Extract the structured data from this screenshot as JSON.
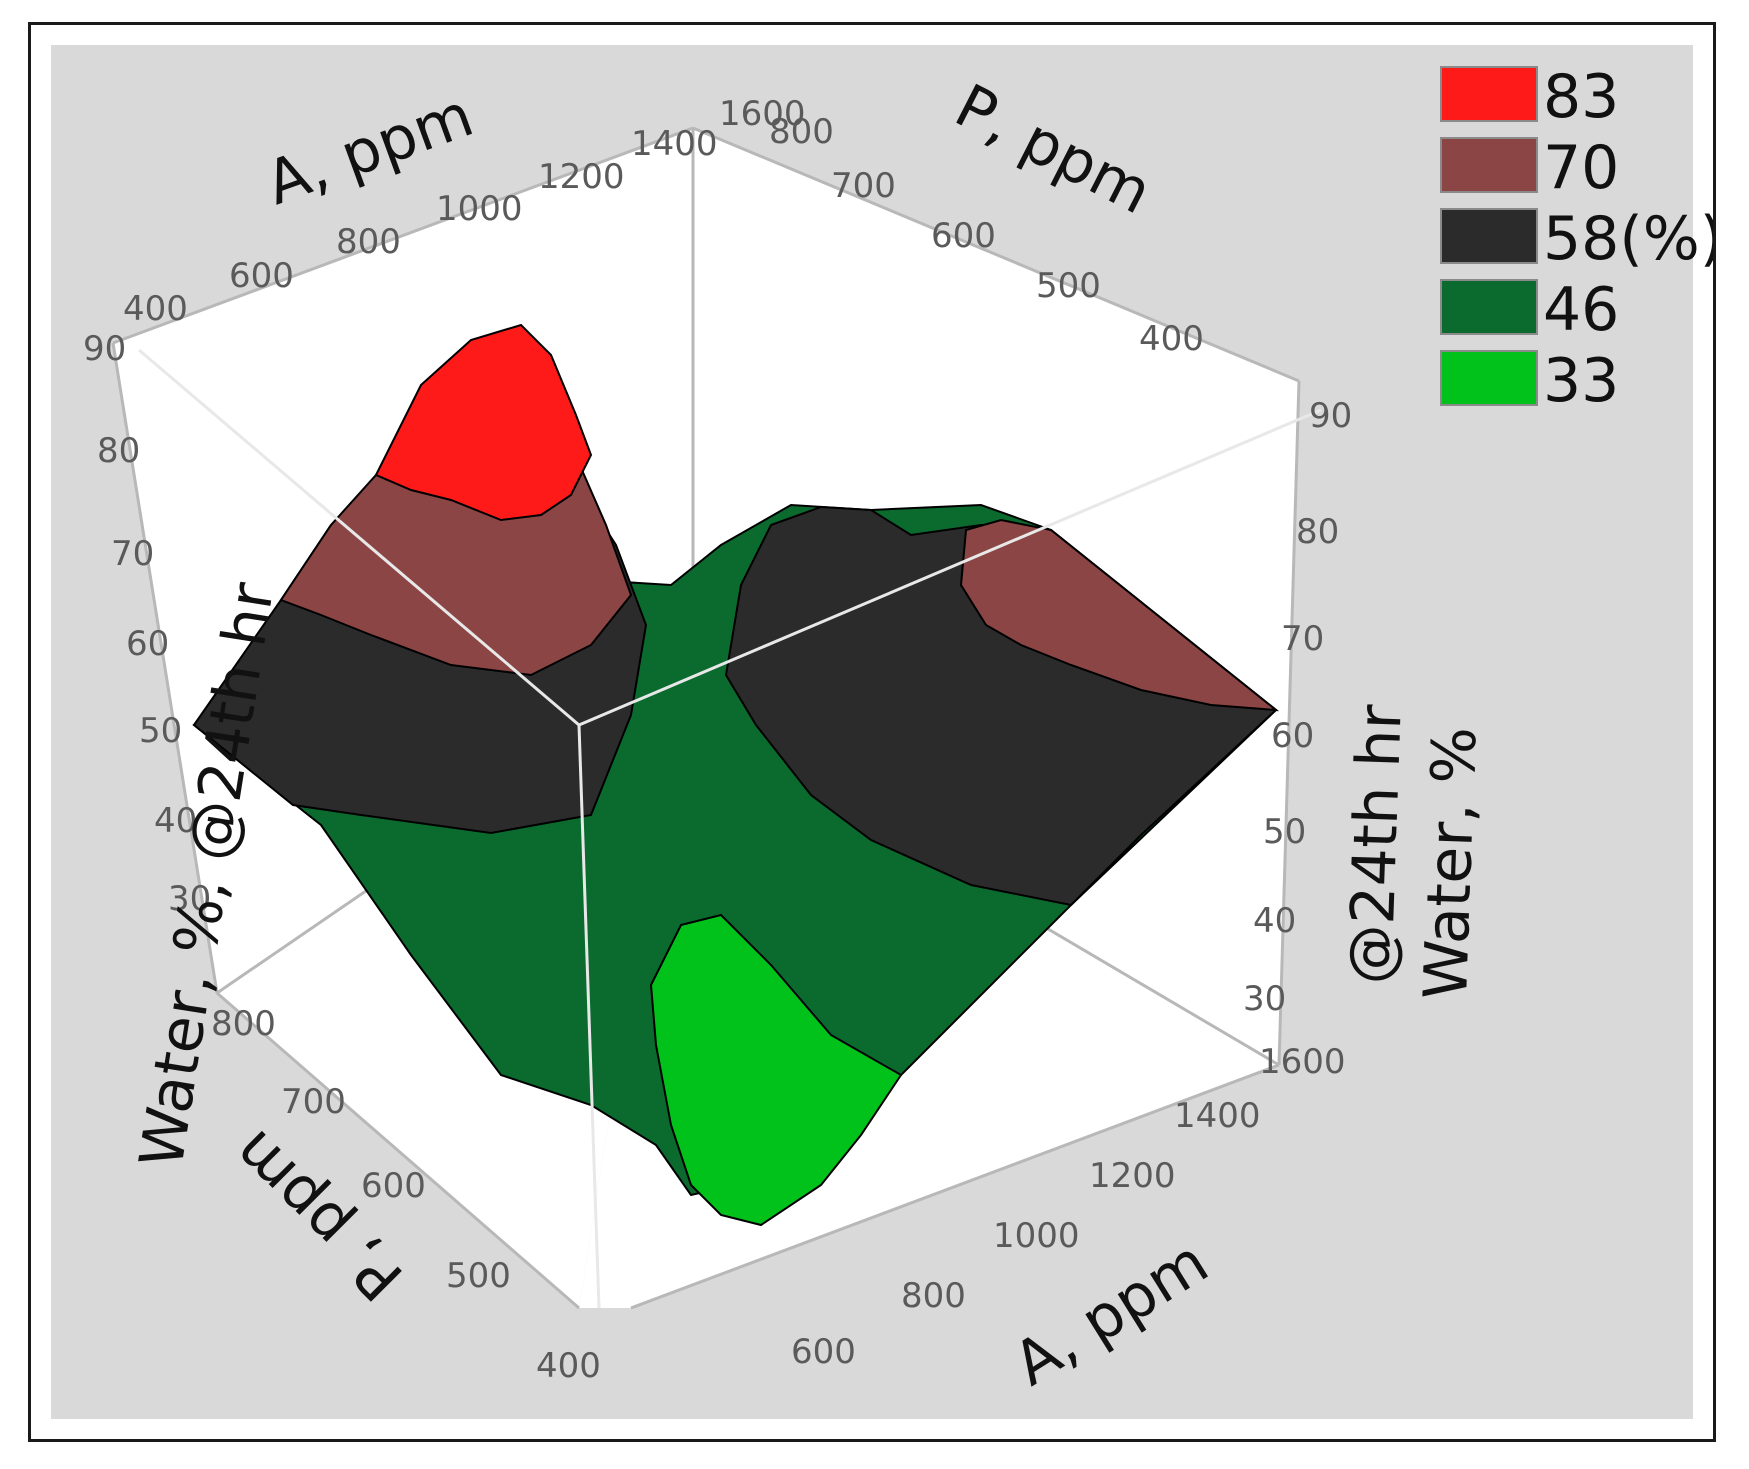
{
  "chart_data": {
    "type": "3d-surface",
    "legend": [
      {
        "label": "83",
        "color": "#ff1a1a"
      },
      {
        "label": "70",
        "color": "#8b4545"
      },
      {
        "label": "58(%)",
        "color": "#2b2b2b"
      },
      {
        "label": "46",
        "color": "#0b6b2e"
      },
      {
        "label": "33",
        "color": "#00c21a"
      }
    ],
    "legend_position": "top-right",
    "axes": {
      "z_left": {
        "label": "Water, %, @24th hr",
        "ticks": [
          30,
          40,
          50,
          60,
          70,
          80,
          90
        ],
        "range": [
          30,
          90
        ]
      },
      "z_right": {
        "label_line1": "@24th hr",
        "label_line2": "Water, %",
        "ticks": [
          30,
          40,
          50,
          60,
          70,
          80,
          90
        ],
        "range": [
          30,
          90
        ]
      },
      "a_top": {
        "label": "A, ppm",
        "ticks": [
          400,
          600,
          800,
          1000,
          1200,
          1400,
          1600
        ]
      },
      "p_top": {
        "label": "P, ppm",
        "ticks": [
          400,
          500,
          600,
          700,
          800
        ]
      },
      "p_bottom": {
        "label": "P, ppm",
        "ticks": [
          400,
          500,
          600,
          700,
          800
        ]
      },
      "a_bottom": {
        "label": "A, ppm",
        "ticks": [
          600,
          800,
          1000,
          1200,
          1400,
          1600
        ]
      }
    },
    "tick_1600_top": "1600",
    "tick_800_top": "800",
    "grid": true,
    "background": "#d9d9d9"
  }
}
